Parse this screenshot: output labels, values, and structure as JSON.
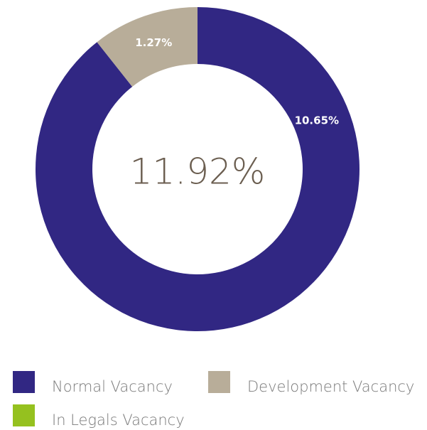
{
  "chart_data": {
    "type": "donut",
    "center_label": "11.92%",
    "categories": [
      "Normal Vacancy",
      "Development Vacancy",
      "In Legals Vacancy"
    ],
    "values": [
      10.65,
      1.27,
      0
    ],
    "value_labels": [
      "10.65%",
      "1.27%",
      null
    ],
    "colors": [
      "#312783",
      "#b8ad99",
      "#95c11f"
    ],
    "legend": "bottom"
  }
}
